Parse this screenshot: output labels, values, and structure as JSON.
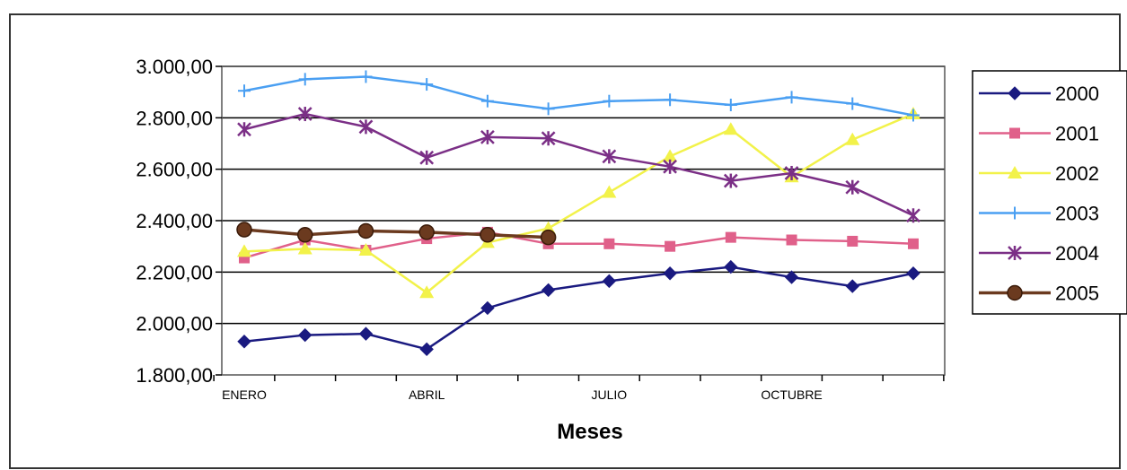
{
  "chart_data": {
    "type": "line",
    "xlabel": "Meses",
    "ylabel": "",
    "ylim": [
      1800,
      3000
    ],
    "y_ticks": [
      {
        "value": 3000,
        "label": "3.000,00"
      },
      {
        "value": 2800,
        "label": "2.800,00"
      },
      {
        "value": 2600,
        "label": "2.600,00"
      },
      {
        "value": 2400,
        "label": "2.400,00"
      },
      {
        "value": 2200,
        "label": "2.200,00"
      },
      {
        "value": 2000,
        "label": "2.000,00"
      },
      {
        "value": 1800,
        "label": "1.800,00"
      }
    ],
    "x_tick_labels": [
      "ENERO",
      "",
      "",
      "ABRIL",
      "",
      "",
      "JULIO",
      "",
      "",
      "OCTUBRE",
      "",
      ""
    ],
    "grid": "horizontal",
    "legend_position": "right",
    "series": [
      {
        "name": "2000",
        "color": "#1a1a80",
        "marker": "diamond",
        "values": [
          1930,
          1955,
          1960,
          1900,
          2060,
          2130,
          2165,
          2195,
          2220,
          2180,
          2145,
          2195
        ]
      },
      {
        "name": "2001",
        "color": "#e0608a",
        "marker": "square",
        "values": [
          2255,
          2325,
          2285,
          2330,
          2355,
          2310,
          2310,
          2300,
          2335,
          2325,
          2320,
          2310
        ]
      },
      {
        "name": "2002",
        "color": "#f2f24a",
        "marker": "triangle",
        "values": [
          2280,
          2290,
          2285,
          2120,
          2315,
          2370,
          2510,
          2650,
          2755,
          2570,
          2715,
          2815
        ]
      },
      {
        "name": "2003",
        "color": "#4a9ff2",
        "marker": "plus",
        "values": [
          2905,
          2950,
          2960,
          2930,
          2865,
          2835,
          2865,
          2870,
          2850,
          2880,
          2855,
          2810
        ]
      },
      {
        "name": "2004",
        "color": "#7b2f86",
        "marker": "star",
        "values": [
          2755,
          2815,
          2765,
          2645,
          2725,
          2720,
          2650,
          2610,
          2555,
          2585,
          2530,
          2420
        ]
      },
      {
        "name": "2005",
        "color": "#6b3a1f",
        "marker": "circle",
        "values": [
          2365,
          2345,
          2360,
          2355,
          2345,
          2335,
          null,
          null,
          null,
          null,
          null,
          null
        ]
      }
    ]
  }
}
